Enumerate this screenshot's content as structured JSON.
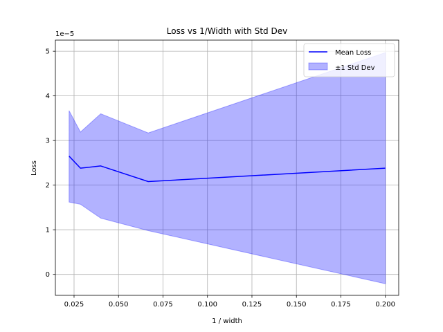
{
  "chart_data": {
    "type": "line",
    "title": "Loss vs 1/Width with Std Dev",
    "xlabel": "1 / width",
    "ylabel": "Loss",
    "y_scale_label": "1e−5",
    "xlim": [
      0.0145,
      0.2075
    ],
    "ylim": [
      -0.47,
      5.25
    ],
    "x_ticks": [
      0.025,
      0.05,
      0.075,
      0.1,
      0.125,
      0.15,
      0.175,
      0.2
    ],
    "x_tick_labels": [
      "0.025",
      "0.050",
      "0.075",
      "0.100",
      "0.125",
      "0.150",
      "0.175",
      "0.200"
    ],
    "y_ticks": [
      0,
      1,
      2,
      3,
      4,
      5
    ],
    "y_tick_labels": [
      "0",
      "1",
      "2",
      "3",
      "4",
      "5"
    ],
    "grid": true,
    "legend_position": "top-right",
    "x": [
      0.0222,
      0.0286,
      0.04,
      0.0667,
      0.2
    ],
    "series": [
      {
        "name": "Mean Loss",
        "kind": "line",
        "color": "#0000ff",
        "values": [
          2.65,
          2.38,
          2.43,
          2.08,
          2.38
        ]
      },
      {
        "name": "±1 Std Dev",
        "kind": "band",
        "color": "#0000ff",
        "lower": [
          1.62,
          1.57,
          1.26,
          0.98,
          -0.21
        ],
        "upper": [
          3.67,
          3.19,
          3.6,
          3.17,
          4.97
        ]
      }
    ]
  }
}
